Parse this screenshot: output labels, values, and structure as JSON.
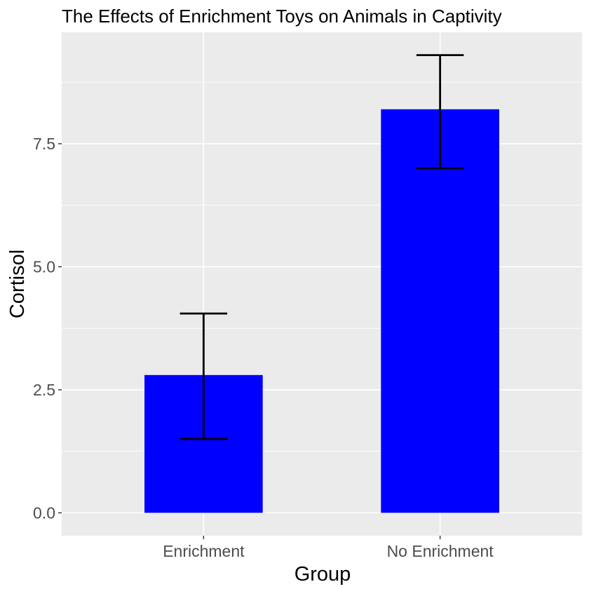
{
  "chart_data": {
    "type": "bar",
    "title": "The Effects of Enrichment Toys on Animals in Captivity",
    "xlabel": "Group",
    "ylabel": "Cortisol",
    "categories": [
      "Enrichment",
      "No Enrichment"
    ],
    "values": [
      2.8,
      8.2
    ],
    "error_bars": [
      {
        "lower": 1.5,
        "upper": 4.05
      },
      {
        "lower": 7.0,
        "upper": 9.3
      }
    ],
    "y_ticks": [
      0.0,
      2.5,
      5.0,
      7.5
    ],
    "y_tick_labels": [
      "0.0",
      "2.5",
      "5.0",
      "7.5"
    ],
    "ylim": [
      -0.465,
      9.765
    ],
    "grid": true,
    "colors": {
      "bar_fill": "#0000ff",
      "panel_background": "#ebebeb",
      "grid_line": "#ffffff",
      "error_bar": "#000000"
    }
  }
}
